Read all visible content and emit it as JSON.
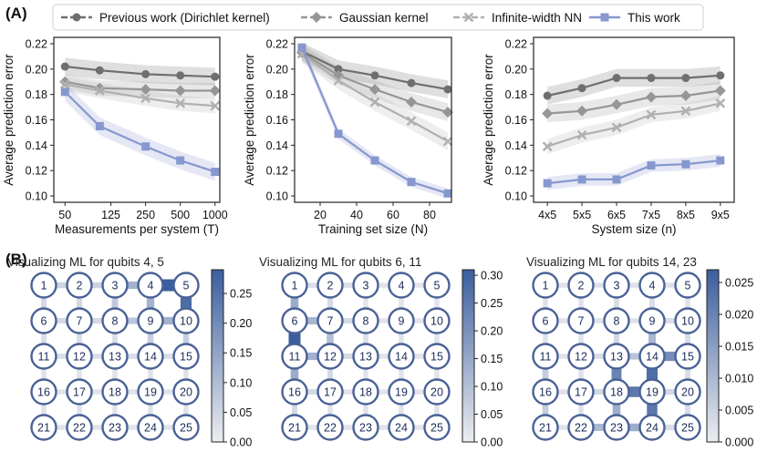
{
  "panel_labels": {
    "a": "(A)",
    "b": "(B)"
  },
  "legend": [
    {
      "name": "Previous work (Dirichlet kernel)",
      "color": "#6f6f6f",
      "marker": "circle"
    },
    {
      "name": "Gaussian kernel",
      "color": "#969696",
      "marker": "diamond"
    },
    {
      "name": "Infinite-width NN",
      "color": "#b0b0b0",
      "marker": "x"
    },
    {
      "name": "This work",
      "color": "#8797cf",
      "marker": "square"
    }
  ],
  "chart_data": [
    {
      "type": "line",
      "id": "measurements",
      "xlabel": "Measurements per system (T)",
      "ylabel": "Average prediction error",
      "xscale": "log",
      "xlim": [
        40,
        1100
      ],
      "ylim": [
        0.095,
        0.225
      ],
      "xticks": [
        50,
        125,
        250,
        500,
        1000
      ],
      "xtick_labels": [
        "50",
        "125",
        "250",
        "500",
        "1000"
      ],
      "yticks": [
        0.1,
        0.12,
        0.14,
        0.16,
        0.18,
        0.2,
        0.22
      ],
      "ytick_labels": [
        "0.10",
        "0.12",
        "0.14",
        "0.16",
        "0.18",
        "0.20",
        "0.22"
      ],
      "x": [
        50,
        100,
        250,
        500,
        1000
      ],
      "series": [
        {
          "name": "Previous work (Dirichlet kernel)",
          "values": [
            0.202,
            0.199,
            0.196,
            0.195,
            0.194
          ],
          "band": 0.007
        },
        {
          "name": "Gaussian kernel",
          "values": [
            0.19,
            0.185,
            0.184,
            0.183,
            0.183
          ],
          "band": 0.006
        },
        {
          "name": "Infinite-width NN",
          "values": [
            0.188,
            0.183,
            0.177,
            0.173,
            0.171
          ],
          "band": 0.006
        },
        {
          "name": "This work",
          "values": [
            0.182,
            0.155,
            0.139,
            0.128,
            0.119
          ],
          "band": 0.007
        }
      ]
    },
    {
      "type": "line",
      "id": "training",
      "xlabel": "Training set size (N)",
      "ylabel": "Average prediction error",
      "xscale": "linear",
      "xlim": [
        6,
        92
      ],
      "ylim": [
        0.095,
        0.225
      ],
      "xticks": [
        20,
        40,
        60,
        80
      ],
      "xtick_labels": [
        "20",
        "40",
        "60",
        "80"
      ],
      "yticks": [
        0.1,
        0.12,
        0.14,
        0.16,
        0.18,
        0.2,
        0.22
      ],
      "ytick_labels": [
        "0.10",
        "0.12",
        "0.14",
        "0.16",
        "0.18",
        "0.20",
        "0.22"
      ],
      "x": [
        10,
        30,
        50,
        70,
        90
      ],
      "series": [
        {
          "name": "Previous work (Dirichlet kernel)",
          "values": [
            0.214,
            0.2,
            0.195,
            0.189,
            0.184
          ],
          "band": 0.007
        },
        {
          "name": "Gaussian kernel",
          "values": [
            0.213,
            0.195,
            0.184,
            0.174,
            0.166
          ],
          "band": 0.007
        },
        {
          "name": "Infinite-width NN",
          "values": [
            0.212,
            0.191,
            0.174,
            0.159,
            0.143
          ],
          "band": 0.007
        },
        {
          "name": "This work",
          "values": [
            0.217,
            0.149,
            0.128,
            0.111,
            0.102
          ],
          "band": 0.004
        }
      ]
    },
    {
      "type": "line",
      "id": "system_size",
      "xlabel": "System size (n)",
      "ylabel": "Average prediction error",
      "xscale": "categorical",
      "xlim": [
        -0.4,
        5.4
      ],
      "ylim": [
        0.095,
        0.225
      ],
      "xticks": [
        0,
        1,
        2,
        3,
        4,
        5
      ],
      "xtick_labels": [
        "4x5",
        "5x5",
        "6x5",
        "7x5",
        "8x5",
        "9x5"
      ],
      "yticks": [
        0.1,
        0.12,
        0.14,
        0.16,
        0.18,
        0.2,
        0.22
      ],
      "ytick_labels": [
        "0.10",
        "0.12",
        "0.14",
        "0.16",
        "0.18",
        "0.20",
        "0.22"
      ],
      "x": [
        0,
        1,
        2,
        3,
        4,
        5
      ],
      "series": [
        {
          "name": "Previous work (Dirichlet kernel)",
          "values": [
            0.179,
            0.185,
            0.193,
            0.193,
            0.193,
            0.195
          ],
          "band": 0.007
        },
        {
          "name": "Gaussian kernel",
          "values": [
            0.165,
            0.167,
            0.172,
            0.178,
            0.179,
            0.183
          ],
          "band": 0.007
        },
        {
          "name": "Infinite-width NN",
          "values": [
            0.139,
            0.148,
            0.154,
            0.164,
            0.167,
            0.173
          ],
          "band": 0.006
        },
        {
          "name": "This work",
          "values": [
            0.11,
            0.113,
            0.113,
            0.124,
            0.125,
            0.128
          ],
          "band": 0.005
        }
      ]
    },
    {
      "type": "heatmap",
      "id": "viz_4_5",
      "title": "Visualizing ML for qubits 4, 5",
      "nodes": [
        "1",
        "2",
        "3",
        "4",
        "5",
        "6",
        "7",
        "8",
        "9",
        "10",
        "11",
        "12",
        "13",
        "14",
        "15",
        "16",
        "17",
        "18",
        "19",
        "20",
        "21",
        "22",
        "23",
        "24",
        "25"
      ],
      "colorbar": {
        "min": 0.0,
        "max": 0.29,
        "ticks": [
          0.0,
          0.05,
          0.1,
          0.15,
          0.2,
          0.25
        ],
        "tick_labels": [
          "0.00",
          "0.05",
          "0.10",
          "0.15",
          "0.20",
          "0.25"
        ]
      },
      "edges": [
        [
          1,
          2,
          0.05
        ],
        [
          2,
          3,
          0.05
        ],
        [
          3,
          4,
          0.12
        ],
        [
          4,
          5,
          0.29
        ],
        [
          6,
          7,
          0.04
        ],
        [
          7,
          8,
          0.04
        ],
        [
          8,
          9,
          0.08
        ],
        [
          9,
          10,
          0.12
        ],
        [
          11,
          12,
          0.03
        ],
        [
          12,
          13,
          0.03
        ],
        [
          13,
          14,
          0.03
        ],
        [
          14,
          15,
          0.03
        ],
        [
          16,
          17,
          0.02
        ],
        [
          17,
          18,
          0.02
        ],
        [
          18,
          19,
          0.02
        ],
        [
          19,
          20,
          0.02
        ],
        [
          21,
          22,
          0.02
        ],
        [
          22,
          23,
          0.02
        ],
        [
          23,
          24,
          0.02
        ],
        [
          24,
          25,
          0.02
        ],
        [
          1,
          6,
          0.04
        ],
        [
          2,
          7,
          0.04
        ],
        [
          3,
          8,
          0.07
        ],
        [
          4,
          9,
          0.12
        ],
        [
          5,
          10,
          0.26
        ],
        [
          6,
          11,
          0.03
        ],
        [
          7,
          12,
          0.03
        ],
        [
          8,
          13,
          0.03
        ],
        [
          9,
          14,
          0.06
        ],
        [
          10,
          15,
          0.06
        ],
        [
          11,
          16,
          0.02
        ],
        [
          12,
          17,
          0.02
        ],
        [
          13,
          18,
          0.02
        ],
        [
          14,
          19,
          0.02
        ],
        [
          15,
          20,
          0.02
        ],
        [
          16,
          21,
          0.02
        ],
        [
          17,
          22,
          0.02
        ],
        [
          18,
          23,
          0.02
        ],
        [
          19,
          24,
          0.02
        ],
        [
          20,
          25,
          0.02
        ]
      ]
    },
    {
      "type": "heatmap",
      "id": "viz_6_11",
      "title": "Visualizing ML for qubits 6, 11",
      "nodes": [
        "1",
        "2",
        "3",
        "4",
        "5",
        "6",
        "7",
        "8",
        "9",
        "10",
        "11",
        "12",
        "13",
        "14",
        "15",
        "16",
        "17",
        "18",
        "19",
        "20",
        "21",
        "22",
        "23",
        "24",
        "25"
      ],
      "colorbar": {
        "min": 0.0,
        "max": 0.31,
        "ticks": [
          0.0,
          0.05,
          0.1,
          0.15,
          0.2,
          0.25,
          0.3
        ],
        "tick_labels": [
          "0.00",
          "0.05",
          "0.10",
          "0.15",
          "0.20",
          "0.25",
          "0.30"
        ]
      },
      "edges": [
        [
          1,
          2,
          0.03
        ],
        [
          2,
          3,
          0.03
        ],
        [
          3,
          4,
          0.02
        ],
        [
          4,
          5,
          0.02
        ],
        [
          6,
          7,
          0.12
        ],
        [
          7,
          8,
          0.04
        ],
        [
          8,
          9,
          0.02
        ],
        [
          9,
          10,
          0.02
        ],
        [
          11,
          12,
          0.13
        ],
        [
          12,
          13,
          0.04
        ],
        [
          13,
          14,
          0.02
        ],
        [
          14,
          15,
          0.02
        ],
        [
          16,
          17,
          0.04
        ],
        [
          17,
          18,
          0.02
        ],
        [
          18,
          19,
          0.02
        ],
        [
          19,
          20,
          0.02
        ],
        [
          21,
          22,
          0.02
        ],
        [
          22,
          23,
          0.02
        ],
        [
          23,
          24,
          0.02
        ],
        [
          24,
          25,
          0.02
        ],
        [
          1,
          6,
          0.14
        ],
        [
          2,
          7,
          0.04
        ],
        [
          3,
          8,
          0.02
        ],
        [
          4,
          9,
          0.02
        ],
        [
          5,
          10,
          0.02
        ],
        [
          6,
          11,
          0.31
        ],
        [
          7,
          12,
          0.1
        ],
        [
          8,
          13,
          0.03
        ],
        [
          9,
          14,
          0.02
        ],
        [
          10,
          15,
          0.02
        ],
        [
          11,
          16,
          0.14
        ],
        [
          12,
          17,
          0.04
        ],
        [
          13,
          18,
          0.02
        ],
        [
          14,
          19,
          0.02
        ],
        [
          15,
          20,
          0.02
        ],
        [
          16,
          21,
          0.04
        ],
        [
          17,
          22,
          0.02
        ],
        [
          18,
          23,
          0.02
        ],
        [
          19,
          24,
          0.02
        ],
        [
          20,
          25,
          0.02
        ]
      ]
    },
    {
      "type": "heatmap",
      "id": "viz_14_23",
      "title": "Visualizing ML for qubits 14, 23",
      "nodes": [
        "1",
        "2",
        "3",
        "4",
        "5",
        "6",
        "7",
        "8",
        "9",
        "10",
        "11",
        "12",
        "13",
        "14",
        "15",
        "16",
        "17",
        "18",
        "19",
        "20",
        "21",
        "22",
        "23",
        "24",
        "25"
      ],
      "colorbar": {
        "min": 0.0,
        "max": 0.027,
        "ticks": [
          0.0,
          0.005,
          0.01,
          0.015,
          0.02,
          0.025
        ],
        "tick_labels": [
          "0.000",
          "0.005",
          "0.010",
          "0.015",
          "0.020",
          "0.025"
        ]
      },
      "edges": [
        [
          1,
          2,
          0.002
        ],
        [
          2,
          3,
          0.002
        ],
        [
          3,
          4,
          0.002
        ],
        [
          4,
          5,
          0.002
        ],
        [
          6,
          7,
          0.002
        ],
        [
          7,
          8,
          0.002
        ],
        [
          8,
          9,
          0.002
        ],
        [
          9,
          10,
          0.003
        ],
        [
          11,
          12,
          0.002
        ],
        [
          12,
          13,
          0.003
        ],
        [
          13,
          14,
          0.008
        ],
        [
          14,
          15,
          0.018
        ],
        [
          16,
          17,
          0.002
        ],
        [
          17,
          18,
          0.004
        ],
        [
          18,
          19,
          0.022
        ],
        [
          19,
          20,
          0.004
        ],
        [
          21,
          22,
          0.002
        ],
        [
          22,
          23,
          0.01
        ],
        [
          23,
          24,
          0.012
        ],
        [
          24,
          25,
          0.003
        ],
        [
          1,
          6,
          0.002
        ],
        [
          2,
          7,
          0.002
        ],
        [
          3,
          8,
          0.003
        ],
        [
          4,
          9,
          0.003
        ],
        [
          5,
          10,
          0.002
        ],
        [
          6,
          11,
          0.002
        ],
        [
          7,
          12,
          0.002
        ],
        [
          8,
          13,
          0.004
        ],
        [
          9,
          14,
          0.01
        ],
        [
          10,
          15,
          0.003
        ],
        [
          11,
          16,
          0.006
        ],
        [
          12,
          17,
          0.002
        ],
        [
          13,
          18,
          0.02
        ],
        [
          14,
          19,
          0.024
        ],
        [
          15,
          20,
          0.003
        ],
        [
          16,
          21,
          0.006
        ],
        [
          17,
          22,
          0.002
        ],
        [
          18,
          23,
          0.012
        ],
        [
          19,
          24,
          0.022
        ],
        [
          20,
          25,
          0.003
        ]
      ]
    }
  ]
}
